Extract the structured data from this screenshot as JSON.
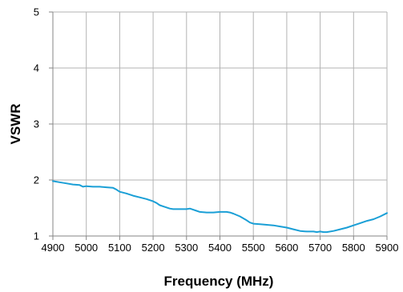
{
  "chart_data": {
    "type": "line",
    "title": "",
    "xlabel": "Frequency (MHz)",
    "ylabel": "VSWR",
    "xlim": [
      4900,
      5900
    ],
    "ylim": [
      1,
      5
    ],
    "xticks": [
      "4900",
      "5000",
      "5100",
      "5200",
      "5300",
      "5400",
      "5500",
      "5600",
      "5700",
      "5800",
      "5900"
    ],
    "yticks": [
      "1",
      "2",
      "3",
      "4",
      "5"
    ],
    "grid": true,
    "colors": {
      "series": "#1a9fd6",
      "grid": "#b3b3b3",
      "axis": "#868686"
    },
    "series": [
      {
        "x": [
          4900,
          4920,
          4940,
          4960,
          4980,
          4990,
          5000,
          5020,
          5040,
          5060,
          5080,
          5090,
          5100,
          5120,
          5140,
          5160,
          5180,
          5190,
          5200,
          5210,
          5220,
          5230,
          5240,
          5250,
          5260,
          5280,
          5300,
          5310,
          5320,
          5330,
          5340,
          5360,
          5380,
          5400,
          5410,
          5420,
          5430,
          5440,
          5460,
          5480,
          5490,
          5500,
          5520,
          5540,
          5560,
          5580,
          5600,
          5620,
          5640,
          5660,
          5680,
          5690,
          5700,
          5710,
          5720,
          5740,
          5760,
          5780,
          5800,
          5820,
          5840,
          5860,
          5880,
          5900
        ],
        "y": [
          1.98,
          1.96,
          1.94,
          1.92,
          1.91,
          1.88,
          1.89,
          1.88,
          1.88,
          1.87,
          1.86,
          1.83,
          1.79,
          1.76,
          1.72,
          1.69,
          1.66,
          1.64,
          1.62,
          1.59,
          1.55,
          1.53,
          1.51,
          1.49,
          1.48,
          1.48,
          1.48,
          1.49,
          1.47,
          1.45,
          1.43,
          1.42,
          1.42,
          1.43,
          1.43,
          1.43,
          1.42,
          1.4,
          1.35,
          1.28,
          1.24,
          1.22,
          1.21,
          1.2,
          1.19,
          1.17,
          1.15,
          1.12,
          1.09,
          1.08,
          1.08,
          1.07,
          1.08,
          1.07,
          1.07,
          1.09,
          1.12,
          1.15,
          1.19,
          1.23,
          1.27,
          1.3,
          1.35,
          1.41
        ]
      }
    ]
  }
}
